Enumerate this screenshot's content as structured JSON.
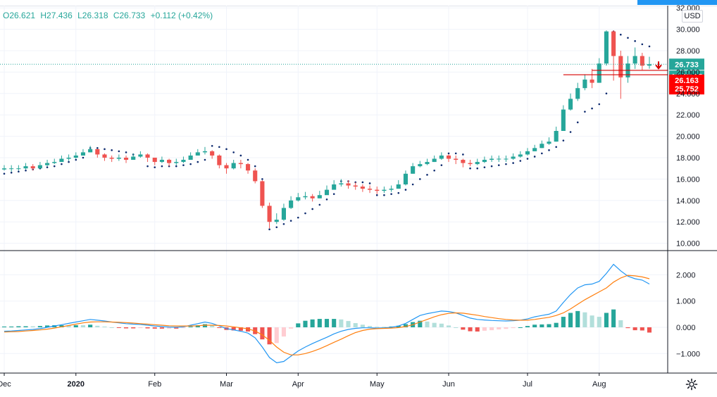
{
  "ohlc": {
    "open": "O26.621",
    "high": "H27.436",
    "low": "L26.318",
    "close": "C26.733",
    "change": "+0.112 (+0.42%)"
  },
  "currency": "USD",
  "price_axis": {
    "ticks": [
      "32.000",
      "30.000",
      "28.000",
      "26.000",
      "24.000",
      "22.000",
      "20.000",
      "18.000",
      "16.000",
      "14.000",
      "12.000",
      "10.000"
    ],
    "last_price_label": "26.733",
    "countdown_label": "12:35:17",
    "level_1_label": "26.163",
    "level_2_label": "25.752"
  },
  "macd_axis": {
    "ticks": [
      "2.000",
      "1.000",
      "0.000",
      "−1.000"
    ]
  },
  "time_axis": {
    "ticks": [
      "Dec",
      "2020",
      "Feb",
      "Mar",
      "Apr",
      "May",
      "Jun",
      "Jul",
      "Aug"
    ]
  },
  "colors": {
    "up": "#26a69a",
    "down": "#ef5350",
    "hist_up_strong": "#26a69a",
    "hist_up_weak": "#b2dfdb",
    "hist_down_strong": "#ef5350",
    "hist_down_weak": "#ffcdd2",
    "macd_line": "#2196f3",
    "signal_line": "#ff7f0e",
    "psar": "#0d2a6e",
    "level_line": "#d50000",
    "last_price": "#26a69a"
  },
  "chart_data": [
    {
      "type": "candlestick",
      "series_name": "price",
      "y_range": [
        10,
        32
      ],
      "indicator": "parabolic SAR",
      "x_ticks": [
        "Dec",
        "2020",
        "Feb",
        "Mar",
        "Apr",
        "May",
        "Jun",
        "Jul",
        "Aug"
      ],
      "close": [
        17.0,
        17.0,
        17.0,
        17.2,
        17.0,
        17.3,
        17.5,
        17.6,
        17.9,
        18.0,
        18.2,
        18.5,
        18.8,
        18.3,
        18.0,
        17.9,
        18.0,
        17.8,
        18.1,
        18.3,
        18.0,
        17.6,
        17.8,
        17.5,
        17.6,
        17.8,
        18.2,
        18.5,
        18.6,
        18.2,
        17.3,
        17.0,
        17.5,
        17.4,
        16.8,
        15.8,
        13.5,
        12.0,
        12.2,
        13.3,
        14.0,
        14.3,
        14.4,
        14.2,
        14.5,
        15.0,
        15.5,
        15.6,
        15.4,
        15.3,
        15.1,
        15.0,
        14.9,
        15.0,
        15.1,
        15.5,
        16.5,
        17.2,
        17.4,
        17.6,
        17.9,
        18.2,
        17.9,
        17.8,
        17.5,
        17.4,
        17.6,
        17.8,
        17.9,
        17.9,
        17.9,
        18.1,
        18.3,
        18.6,
        18.9,
        19.3,
        19.5,
        20.5,
        22.5,
        23.5,
        24.5,
        25.3,
        25.0,
        26.8,
        29.8,
        27.5,
        25.5,
        26.8,
        27.5,
        26.6,
        26.733
      ],
      "high": [
        17.3,
        17.3,
        17.3,
        17.5,
        17.4,
        17.6,
        17.8,
        17.9,
        18.2,
        18.3,
        18.5,
        18.8,
        19.1,
        18.7,
        18.4,
        18.2,
        18.3,
        18.2,
        18.4,
        18.6,
        18.4,
        18.0,
        18.1,
        17.9,
        17.9,
        18.1,
        18.5,
        18.8,
        19.0,
        18.7,
        18.3,
        17.5,
        17.8,
        17.8,
        17.5,
        17.0,
        15.9,
        13.8,
        12.8,
        13.7,
        14.4,
        14.7,
        14.8,
        14.6,
        14.9,
        15.4,
        15.9,
        16.0,
        15.9,
        15.7,
        15.5,
        15.4,
        15.3,
        15.3,
        15.4,
        15.9,
        16.8,
        17.5,
        17.7,
        17.9,
        18.2,
        18.5,
        18.3,
        18.2,
        17.9,
        17.8,
        17.9,
        18.1,
        18.2,
        18.2,
        18.2,
        18.4,
        18.6,
        18.9,
        19.2,
        19.6,
        19.9,
        20.9,
        22.9,
        24.0,
        25.0,
        25.8,
        26.3,
        27.3,
        29.9,
        29.9,
        28.0,
        27.5,
        28.3,
        27.8,
        27.436
      ],
      "low": [
        16.8,
        16.7,
        16.8,
        16.9,
        16.8,
        17.0,
        17.2,
        17.4,
        17.6,
        17.7,
        17.9,
        18.2,
        18.5,
        18.0,
        17.7,
        17.6,
        17.7,
        17.5,
        17.8,
        18.0,
        17.6,
        17.3,
        17.5,
        17.2,
        17.3,
        17.5,
        17.9,
        18.2,
        18.3,
        17.9,
        17.0,
        16.5,
        16.9,
        17.0,
        16.5,
        15.6,
        13.3,
        11.4,
        11.8,
        12.1,
        13.2,
        13.9,
        14.1,
        13.9,
        14.2,
        14.6,
        15.1,
        15.3,
        15.1,
        15.0,
        14.8,
        14.7,
        14.6,
        14.7,
        14.8,
        15.1,
        15.4,
        16.5,
        17.1,
        17.3,
        17.6,
        17.8,
        17.6,
        17.4,
        17.1,
        17.2,
        17.3,
        17.5,
        17.6,
        17.6,
        17.6,
        17.8,
        18.0,
        18.2,
        18.6,
        18.9,
        19.2,
        19.5,
        20.5,
        22.4,
        23.3,
        24.3,
        24.5,
        25.0,
        26.6,
        25.2,
        23.5,
        25.0,
        26.3,
        26.2,
        26.318
      ],
      "psar": [
        16.5,
        16.6,
        16.7,
        16.8,
        16.9,
        17.0,
        17.1,
        17.2,
        17.4,
        17.6,
        17.8,
        18.0,
        18.9,
        18.9,
        18.8,
        18.7,
        18.6,
        18.5,
        18.3,
        18.2,
        17.2,
        17.1,
        17.2,
        17.2,
        17.2,
        17.3,
        17.4,
        17.6,
        17.8,
        19.1,
        19.0,
        18.8,
        18.5,
        18.2,
        17.8,
        17.2,
        16.0,
        11.3,
        11.5,
        11.8,
        12.1,
        12.4,
        12.8,
        13.2,
        13.6,
        14.1,
        14.6,
        15.8,
        15.8,
        15.7,
        15.7,
        15.6,
        14.5,
        14.5,
        14.6,
        14.7,
        15.0,
        15.5,
        16.0,
        16.4,
        16.8,
        17.3,
        18.4,
        18.4,
        18.3,
        17.0,
        17.0,
        17.1,
        17.2,
        17.3,
        17.4,
        17.5,
        17.7,
        17.9,
        18.1,
        18.4,
        18.7,
        19.0,
        19.6,
        20.4,
        21.3,
        22.3,
        22.6,
        23.0,
        24.0,
        29.8,
        29.5,
        29.2,
        28.9,
        28.6,
        28.4
      ]
    },
    {
      "type": "line+bar",
      "series_name": "MACD",
      "y_range": [
        -1.5,
        2.5
      ],
      "series": [
        {
          "name": "macd",
          "values": [
            -0.15,
            -0.14,
            -0.12,
            -0.1,
            -0.08,
            -0.05,
            0.0,
            0.05,
            0.1,
            0.15,
            0.2,
            0.25,
            0.3,
            0.27,
            0.24,
            0.2,
            0.17,
            0.14,
            0.12,
            0.11,
            0.08,
            0.05,
            0.03,
            0.01,
            0.0,
            0.02,
            0.08,
            0.14,
            0.2,
            0.15,
            0.05,
            -0.05,
            -0.1,
            -0.15,
            -0.22,
            -0.4,
            -0.75,
            -1.15,
            -1.35,
            -1.3,
            -1.1,
            -0.9,
            -0.75,
            -0.62,
            -0.5,
            -0.38,
            -0.25,
            -0.15,
            -0.08,
            -0.04,
            -0.02,
            -0.02,
            -0.03,
            -0.02,
            0.0,
            0.05,
            0.15,
            0.3,
            0.45,
            0.52,
            0.57,
            0.62,
            0.6,
            0.55,
            0.45,
            0.35,
            0.3,
            0.28,
            0.26,
            0.25,
            0.24,
            0.25,
            0.27,
            0.32,
            0.4,
            0.45,
            0.5,
            0.62,
            0.95,
            1.25,
            1.5,
            1.62,
            1.65,
            1.75,
            2.05,
            2.4,
            2.15,
            1.95,
            1.85,
            1.8,
            1.65
          ]
        },
        {
          "name": "signal",
          "values": [
            -0.18,
            -0.17,
            -0.16,
            -0.14,
            -0.12,
            -0.1,
            -0.07,
            -0.03,
            0.02,
            0.07,
            0.12,
            0.17,
            0.2,
            0.21,
            0.21,
            0.2,
            0.19,
            0.18,
            0.16,
            0.14,
            0.12,
            0.1,
            0.08,
            0.06,
            0.05,
            0.05,
            0.05,
            0.06,
            0.08,
            0.08,
            0.07,
            0.05,
            0.02,
            -0.02,
            -0.06,
            -0.14,
            -0.29,
            -0.5,
            -0.75,
            -0.95,
            -1.05,
            -1.05,
            -1.0,
            -0.92,
            -0.82,
            -0.7,
            -0.57,
            -0.45,
            -0.32,
            -0.2,
            -0.12,
            -0.07,
            -0.05,
            -0.04,
            -0.03,
            -0.01,
            0.03,
            0.1,
            0.2,
            0.3,
            0.4,
            0.48,
            0.53,
            0.55,
            0.54,
            0.5,
            0.46,
            0.41,
            0.37,
            0.33,
            0.3,
            0.28,
            0.27,
            0.27,
            0.3,
            0.34,
            0.38,
            0.45,
            0.55,
            0.7,
            0.88,
            1.05,
            1.2,
            1.35,
            1.5,
            1.72,
            1.88,
            1.98,
            1.96,
            1.92,
            1.85
          ]
        }
      ]
    }
  ]
}
